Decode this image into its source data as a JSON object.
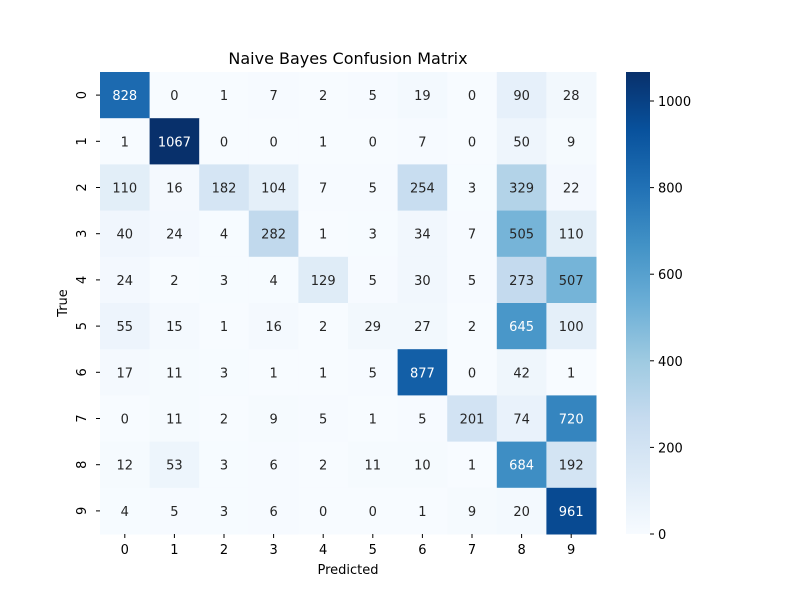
{
  "chart_data": {
    "type": "heatmap",
    "title": "Naive Bayes Confusion Matrix",
    "xlabel": "Predicted",
    "ylabel": "True",
    "x_categories": [
      "0",
      "1",
      "2",
      "3",
      "4",
      "5",
      "6",
      "7",
      "8",
      "9"
    ],
    "y_categories": [
      "0",
      "1",
      "2",
      "3",
      "4",
      "5",
      "6",
      "7",
      "8",
      "9"
    ],
    "values": [
      [
        828,
        0,
        1,
        7,
        2,
        5,
        19,
        0,
        90,
        28
      ],
      [
        1,
        1067,
        0,
        0,
        1,
        0,
        7,
        0,
        50,
        9
      ],
      [
        110,
        16,
        182,
        104,
        7,
        5,
        254,
        3,
        329,
        22
      ],
      [
        40,
        24,
        4,
        282,
        1,
        3,
        34,
        7,
        505,
        110
      ],
      [
        24,
        2,
        3,
        4,
        129,
        5,
        30,
        5,
        273,
        507
      ],
      [
        55,
        15,
        1,
        16,
        2,
        29,
        27,
        2,
        645,
        100
      ],
      [
        17,
        11,
        3,
        1,
        1,
        5,
        877,
        0,
        42,
        1
      ],
      [
        0,
        11,
        2,
        9,
        5,
        1,
        5,
        201,
        74,
        720
      ],
      [
        12,
        53,
        3,
        6,
        2,
        11,
        10,
        1,
        684,
        192
      ],
      [
        4,
        5,
        3,
        6,
        0,
        0,
        1,
        9,
        20,
        961
      ]
    ],
    "colorbar": {
      "min": 0,
      "max": 1067,
      "ticks": [
        0,
        200,
        400,
        600,
        800,
        1000
      ],
      "colormap": "Blues"
    }
  }
}
